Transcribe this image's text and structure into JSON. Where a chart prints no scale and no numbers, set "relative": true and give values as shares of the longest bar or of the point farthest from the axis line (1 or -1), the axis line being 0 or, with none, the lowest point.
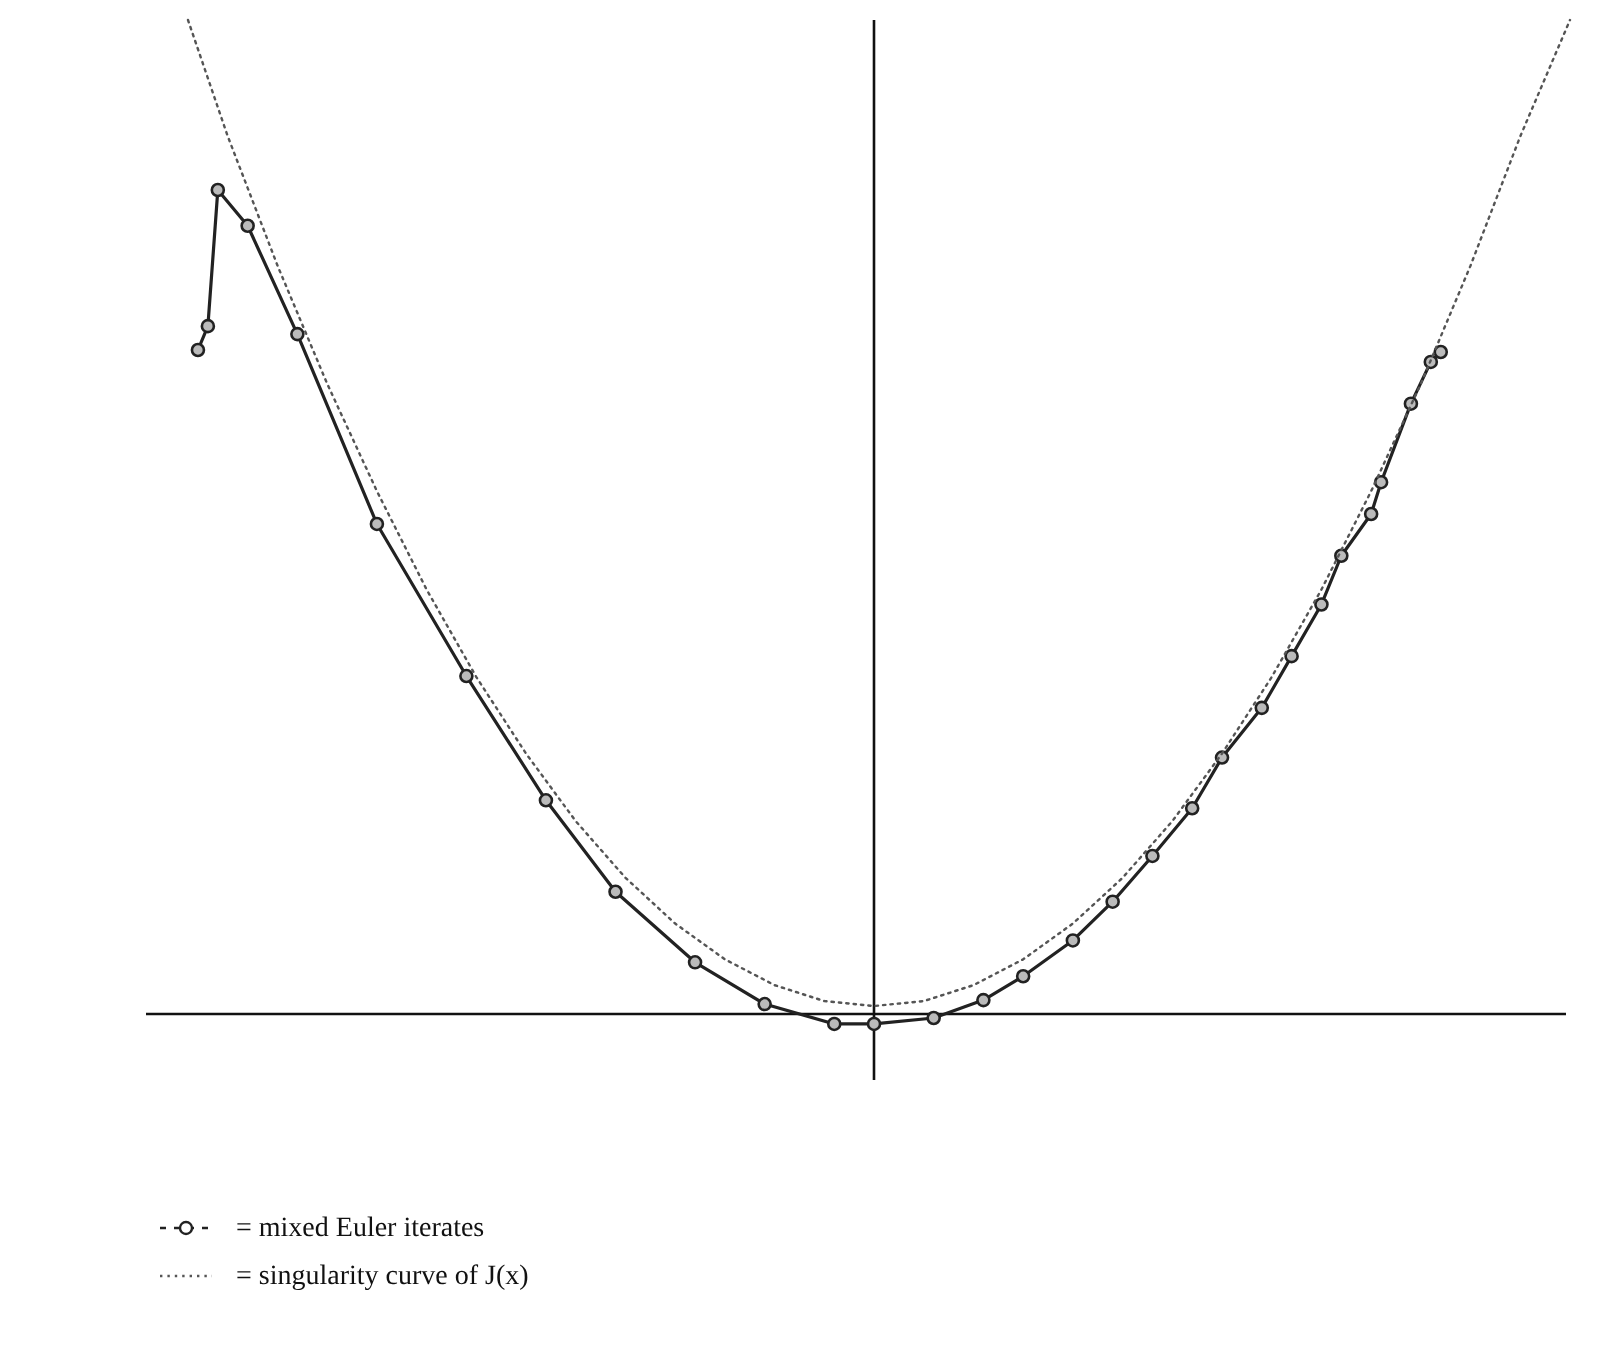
{
  "chart_data": {
    "type": "line",
    "relative": true,
    "legend": "bottom",
    "categories": [
      null,
      null,
      null,
      null,
      null,
      null,
      null,
      null,
      null,
      null,
      null,
      null,
      null,
      null,
      null,
      null,
      null,
      null,
      null,
      null,
      null,
      null,
      null,
      null,
      null,
      null,
      null,
      null,
      null,
      null,
      null,
      null,
      null,
      null,
      null,
      null,
      null,
      null,
      null,
      null,
      null,
      null,
      null,
      null,
      null,
      null,
      null,
      null,
      null,
      null,
      null,
      null,
      null,
      null,
      null,
      null,
      null,
      null,
      null,
      null,
      null,
      null,
      null,
      null,
      null,
      null,
      null,
      null,
      null,
      null,
      null,
      null,
      null,
      null,
      null,
      null,
      null,
      null,
      null,
      null,
      null,
      null,
      null,
      null,
      null,
      null,
      null,
      null,
      null,
      null,
      null,
      null,
      null,
      null,
      null,
      null,
      null,
      null,
      null,
      null,
      null,
      null,
      null,
      null,
      null,
      null,
      null,
      null,
      null,
      null,
      null,
      null,
      null,
      null,
      null,
      null,
      null,
      null,
      null,
      null,
      null,
      null,
      null,
      null,
      null,
      null,
      null,
      null,
      null,
      null,
      null,
      null,
      null,
      null,
      null,
      null,
      null,
      null,
      null,
      null
    ],
    "series": [
      {
        "name": "= mixed Euler iterates",
        "color": "#222222",
        "marker": "circle",
        "line_style": "solid",
        "values": [
          null,
          0.668,
          0.692,
          0.829,
          null,
          null,
          0.793,
          null,
          null,
          null,
          null,
          0.684,
          null,
          null,
          null,
          null,
          null,
          null,
          null,
          0.493,
          null,
          null,
          null,
          null,
          null,
          null,
          null,
          null,
          0.34,
          null,
          null,
          null,
          null,
          null,
          null,
          null,
          0.215,
          null,
          null,
          null,
          null,
          null,
          null,
          0.123,
          null,
          null,
          null,
          null,
          null,
          null,
          null,
          0.052,
          null,
          null,
          null,
          null,
          null,
          null,
          0.01,
          null,
          null,
          null,
          null,
          null,
          null,
          -0.01,
          null,
          null,
          null,
          -0.01,
          null,
          null,
          null,
          null,
          null,
          -0.004,
          null,
          null,
          null,
          null,
          0.014,
          null,
          null,
          null,
          0.038,
          null,
          null,
          null,
          null,
          0.074,
          null,
          null,
          null,
          0.113,
          null,
          null,
          null,
          0.159,
          null,
          null,
          null,
          0.207,
          null,
          null,
          0.258,
          null,
          null,
          null,
          0.308,
          null,
          null,
          0.36,
          null,
          null,
          0.412,
          null,
          0.461,
          null,
          null,
          0.503,
          0.535,
          null,
          null,
          0.614,
          null,
          0.656,
          0.666,
          null,
          null,
          null,
          null,
          null,
          null,
          null,
          null,
          null,
          null,
          null,
          null,
          null
        ]
      },
      {
        "name": "= singularity curve of J(x)",
        "color": "#555555",
        "marker": "none",
        "line_style": "dotted",
        "values": [
          1,
          null,
          null,
          null,
          0.883,
          null,
          null,
          null,
          null,
          0.753,
          null,
          null,
          null,
          null,
          0.634,
          null,
          null,
          null,
          null,
          0.526,
          null,
          null,
          null,
          null,
          0.427,
          null,
          null,
          null,
          null,
          0.339,
          null,
          null,
          null,
          null,
          0.262,
          null,
          null,
          null,
          null,
          0.194,
          null,
          null,
          null,
          null,
          0.137,
          null,
          null,
          null,
          null,
          0.091,
          null,
          null,
          null,
          null,
          0.055,
          null,
          null,
          null,
          null,
          0.029,
          null,
          null,
          null,
          null,
          0.013,
          null,
          null,
          null,
          null,
          0.008,
          null,
          null,
          null,
          null,
          0.013,
          null,
          null,
          null,
          null,
          0.029,
          null,
          null,
          null,
          null,
          0.055,
          null,
          null,
          null,
          null,
          0.091,
          null,
          null,
          null,
          null,
          0.137,
          null,
          null,
          null,
          null,
          0.194,
          null,
          null,
          null,
          null,
          0.262,
          null,
          null,
          null,
          null,
          0.339,
          null,
          null,
          null,
          null,
          0.427,
          null,
          null,
          null,
          null,
          0.526,
          null,
          null,
          null,
          null,
          0.634,
          null,
          null,
          null,
          null,
          0.753,
          null,
          null,
          null,
          null,
          0.883,
          null,
          null,
          null,
          null,
          1
        ]
      }
    ]
  }
}
